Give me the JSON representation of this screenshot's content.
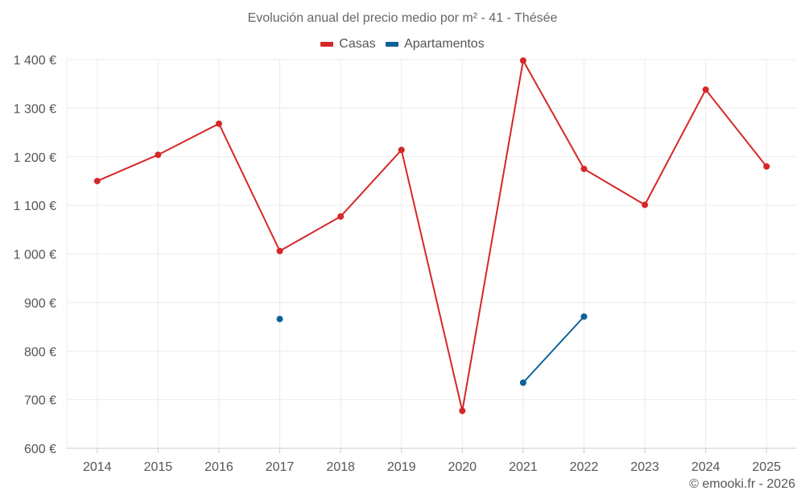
{
  "chart_data": {
    "type": "line",
    "title": "Evolución anual del precio medio por m² - 41 - Thésée",
    "xlabel": "",
    "ylabel": "",
    "categories": [
      "2014",
      "2015",
      "2016",
      "2017",
      "2018",
      "2019",
      "2020",
      "2021",
      "2022",
      "2023",
      "2024",
      "2025"
    ],
    "y_ticks": [
      "600 €",
      "700 €",
      "800 €",
      "900 €",
      "1 000 €",
      "1 100 €",
      "1 200 €",
      "1 300 €",
      "1 400 €"
    ],
    "ylim": [
      600,
      1400
    ],
    "grid": true,
    "legend_position": "top",
    "series": [
      {
        "name": "Casas",
        "color": "#d62728",
        "values": [
          1150,
          1204,
          1268,
          1006,
          1077,
          1214,
          677,
          1398,
          1175,
          1101,
          1338,
          1180
        ]
      },
      {
        "name": "Apartamentos",
        "color": "#0d6199",
        "values": [
          null,
          null,
          null,
          866,
          null,
          null,
          null,
          735,
          871,
          null,
          null,
          null
        ]
      }
    ]
  },
  "credit": "© emooki.fr - 2026"
}
